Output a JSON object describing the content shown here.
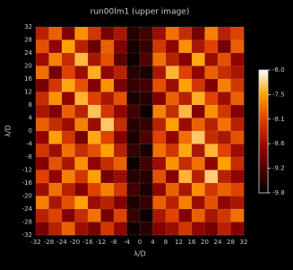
{
  "chart_data": {
    "type": "heatmap",
    "title": "run00lm1 (upper image)",
    "xlabel": "λ/D",
    "ylabel": "λ/D",
    "xlim": [
      -32,
      32
    ],
    "ylim": [
      -32,
      32
    ],
    "xticks": [
      -32,
      -28,
      -24,
      -20,
      -16,
      -12,
      -8,
      -4,
      0,
      4,
      8,
      12,
      16,
      20,
      24,
      28,
      32
    ],
    "yticks": [
      -32,
      -28,
      -24,
      -20,
      -16,
      -12,
      -8,
      -4,
      0,
      4,
      8,
      12,
      16,
      20,
      24,
      28,
      32
    ],
    "grid": true,
    "zlim": [
      -9.8,
      -6.0
    ],
    "zticks": [
      {
        "value": -9.8,
        "label": "-9.8"
      },
      {
        "value": -9.2,
        "label": "-9.2"
      },
      {
        "value": -8.6,
        "label": "-8.6"
      },
      {
        "value": -8.1,
        "label": "-8.1"
      },
      {
        "value": -7.5,
        "label": "-7.5"
      },
      {
        "value": -6.0,
        "label": "-6.0"
      }
    ],
    "z": [
      [
        -8.4,
        -7.9,
        -8.8,
        -7.6,
        -8.2,
        -8.9,
        -8.5,
        -9.5,
        -9.3,
        -8.6,
        -7.8,
        -8.3,
        -8.9,
        -7.7,
        -8.4,
        -8.1
      ],
      [
        -8.0,
        -8.7,
        -7.5,
        -8.4,
        -9.0,
        -7.9,
        -8.8,
        -9.6,
        -9.4,
        -8.2,
        -8.7,
        -7.6,
        -8.5,
        -8.1,
        -8.9,
        -7.9
      ],
      [
        -8.6,
        -7.7,
        -8.3,
        -7.1,
        -8.5,
        -8.0,
        -9.1,
        -9.7,
        -9.2,
        -7.8,
        -8.4,
        -8.8,
        -7.4,
        -8.6,
        -8.0,
        -8.7
      ],
      [
        -7.8,
        -8.9,
        -8.1,
        -8.6,
        -7.3,
        -8.7,
        -8.4,
        -9.5,
        -9.6,
        -8.5,
        -7.2,
        -8.1,
        -8.7,
        -7.9,
        -8.3,
        -8.5
      ],
      [
        -8.9,
        -8.2,
        -7.4,
        -8.0,
        -8.8,
        -7.6,
        -8.9,
        -9.4,
        -9.3,
        -8.0,
        -8.6,
        -7.5,
        -8.2,
        -8.8,
        -7.7,
        -8.2
      ],
      [
        -8.3,
        -7.6,
        -8.7,
        -7.2,
        -8.1,
        -8.5,
        -8.0,
        -9.6,
        -9.5,
        -8.8,
        -7.9,
        -8.4,
        -7.3,
        -8.1,
        -8.6,
        -7.9
      ],
      [
        -8.5,
        -8.8,
        -7.9,
        -8.4,
        -7.0,
        -8.2,
        -8.7,
        -9.3,
        -9.7,
        -7.7,
        -8.3,
        -7.1,
        -8.8,
        -7.6,
        -8.2,
        -8.8
      ],
      [
        -7.9,
        -8.3,
        -8.6,
        -7.7,
        -8.6,
        -6.9,
        -8.3,
        -9.5,
        -9.4,
        -8.4,
        -7.5,
        -8.6,
        -7.9,
        -8.4,
        -7.8,
        -8.4
      ],
      [
        -8.7,
        -7.5,
        -8.2,
        -8.9,
        -7.4,
        -8.1,
        -8.8,
        -9.6,
        -9.2,
        -8.1,
        -8.7,
        -7.8,
        -6.9,
        -8.3,
        -8.5,
        -8.0
      ],
      [
        -8.2,
        -8.6,
        -7.8,
        -8.3,
        -8.0,
        -7.5,
        -8.4,
        -9.4,
        -9.6,
        -7.8,
        -8.2,
        -7.4,
        -8.5,
        -7.2,
        -8.1,
        -8.6
      ],
      [
        -8.8,
        -8.0,
        -8.5,
        -7.6,
        -8.7,
        -8.3,
        -7.9,
        -9.7,
        -9.3,
        -8.6,
        -7.6,
        -8.3,
        -7.8,
        -8.7,
        -7.5,
        -8.3
      ],
      [
        -8.1,
        -8.7,
        -7.7,
        -8.2,
        -7.5,
        -8.9,
        -8.6,
        -9.5,
        -9.5,
        -8.0,
        -8.8,
        -7.2,
        -8.4,
        -6.8,
        -8.4,
        -8.7
      ],
      [
        -8.6,
        -7.8,
        -8.4,
        -8.8,
        -8.1,
        -7.7,
        -8.2,
        -9.3,
        -9.6,
        -8.7,
        -7.9,
        -8.5,
        -7.6,
        -8.2,
        -7.9,
        -8.1
      ],
      [
        -7.7,
        -8.5,
        -8.0,
        -7.5,
        -8.6,
        -8.4,
        -8.8,
        -9.6,
        -9.4,
        -7.9,
        -8.4,
        -7.7,
        -8.6,
        -8.0,
        -8.7,
        -8.5
      ],
      [
        -8.4,
        -8.1,
        -8.8,
        -8.3,
        -7.8,
        -8.9,
        -8.1,
        -9.4,
        -9.7,
        -8.5,
        -8.1,
        -8.8,
        -7.9,
        -8.5,
        -8.2,
        -7.8
      ],
      [
        -8.9,
        -8.4,
        -7.9,
        -8.6,
        -8.9,
        -8.2,
        -8.7,
        -9.7,
        -9.5,
        -8.8,
        -8.6,
        -8.2,
        -8.7,
        -8.9,
        -8.4,
        -8.8
      ]
    ]
  }
}
